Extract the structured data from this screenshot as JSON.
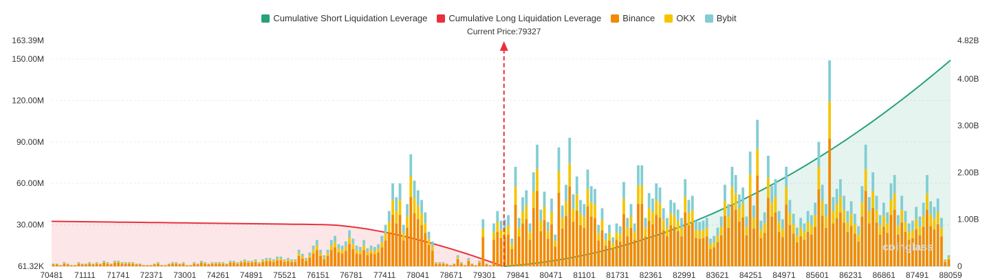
{
  "legend": {
    "items": [
      {
        "label": "Cumulative Short Liquidation Leverage",
        "color": "#26a17b"
      },
      {
        "label": "Cumulative Long Liquidation Leverage",
        "color": "#e8313b"
      },
      {
        "label": "Binance",
        "color": "#f08a00"
      },
      {
        "label": "OKX",
        "color": "#f5c400"
      },
      {
        "label": "Bybit",
        "color": "#82cdd3"
      }
    ]
  },
  "current_price_label": "Current Price:79327",
  "watermark": "coinglass",
  "chart_data": {
    "type": "bar",
    "title": "",
    "current_price": 79327,
    "x_tick_labels": [
      "70481",
      "71111",
      "71741",
      "72371",
      "73001",
      "74261",
      "74891",
      "75521",
      "76151",
      "76781",
      "77411",
      "78041",
      "78671",
      "79301",
      "79841",
      "80471",
      "81101",
      "81731",
      "82361",
      "82991",
      "83621",
      "84251",
      "84971",
      "85601",
      "86231",
      "86861",
      "87491",
      "88059"
    ],
    "y_left": {
      "tick_labels": [
        "61.32K",
        "30.00M",
        "60.00M",
        "90.00M",
        "120.00M",
        "150.00M",
        "163.39M"
      ],
      "tick_values": [
        0,
        30,
        60,
        90,
        120,
        150,
        163.39
      ],
      "range": [
        0,
        163.39
      ],
      "unit": "M"
    },
    "y_right": {
      "tick_labels": [
        "0",
        "1.00B",
        "2.00B",
        "3.00B",
        "4.00B",
        "4.82B"
      ],
      "tick_values": [
        0,
        1,
        2,
        3,
        4,
        4.82
      ],
      "range": [
        0,
        4.82
      ],
      "unit": "B"
    },
    "series_stack_order": [
      "Binance",
      "OKX",
      "Bybit"
    ],
    "totals": [
      2,
      2,
      1,
      3,
      2,
      1,
      1,
      3,
      2,
      2,
      3,
      2,
      3,
      2,
      4,
      3,
      2,
      4,
      4,
      3,
      3,
      3,
      3,
      2,
      2,
      1,
      1,
      1,
      2,
      3,
      1,
      1,
      2,
      3,
      3,
      2,
      3,
      1,
      1,
      3,
      2,
      4,
      3,
      2,
      3,
      3,
      3,
      3,
      2,
      4,
      4,
      3,
      4,
      5,
      4,
      4,
      5,
      3,
      5,
      6,
      6,
      5,
      7,
      7,
      5,
      6,
      5,
      5,
      12,
      9,
      6,
      10,
      15,
      19,
      12,
      8,
      12,
      19,
      22,
      16,
      15,
      18,
      26,
      20,
      15,
      14,
      19,
      13,
      15,
      14,
      16,
      22,
      30,
      40,
      60,
      50,
      60,
      30,
      45,
      81,
      62,
      55,
      48,
      39,
      25,
      18,
      3,
      3,
      3,
      2,
      1,
      2,
      8,
      3,
      1,
      6,
      2,
      1,
      4,
      34,
      2,
      1,
      31,
      40,
      33,
      34,
      37,
      20,
      72,
      35,
      50,
      55,
      31,
      68,
      88,
      41,
      54,
      32,
      49,
      23,
      86,
      44,
      59,
      93,
      52,
      65,
      48,
      45,
      70,
      58,
      56,
      30,
      42,
      24,
      30,
      21,
      31,
      29,
      61,
      35,
      45,
      31,
      73,
      73,
      35,
      53,
      49,
      60,
      57,
      42,
      35,
      48,
      46,
      41,
      35,
      63,
      48,
      51,
      33,
      32,
      33,
      35,
      20,
      22,
      28,
      36,
      59,
      45,
      72,
      66,
      52,
      57,
      36,
      83,
      44,
      106,
      33,
      39,
      80,
      58,
      63,
      40,
      34,
      72,
      48,
      38,
      28,
      35,
      31,
      40,
      37,
      46,
      90,
      59,
      45,
      149,
      50,
      56,
      63,
      51,
      40,
      47,
      38,
      29,
      58,
      88,
      50,
      68,
      51,
      37,
      46,
      39,
      60,
      66,
      37,
      51,
      40,
      31,
      33,
      43,
      36,
      46,
      66,
      47,
      43,
      49,
      35,
      5,
      8
    ],
    "binance_share": 0.62,
    "okx_share": 0.18,
    "bybit_share": 0.2,
    "long_cumulative": {
      "x_start": 70481,
      "x_end": 79301,
      "start_value": 0.96,
      "end_value": 0.0,
      "unit": "B"
    },
    "short_cumulative": {
      "x_start": 79327,
      "x_end": 88059,
      "start_value": 0.0,
      "end_value": 4.4,
      "unit": "B"
    }
  }
}
